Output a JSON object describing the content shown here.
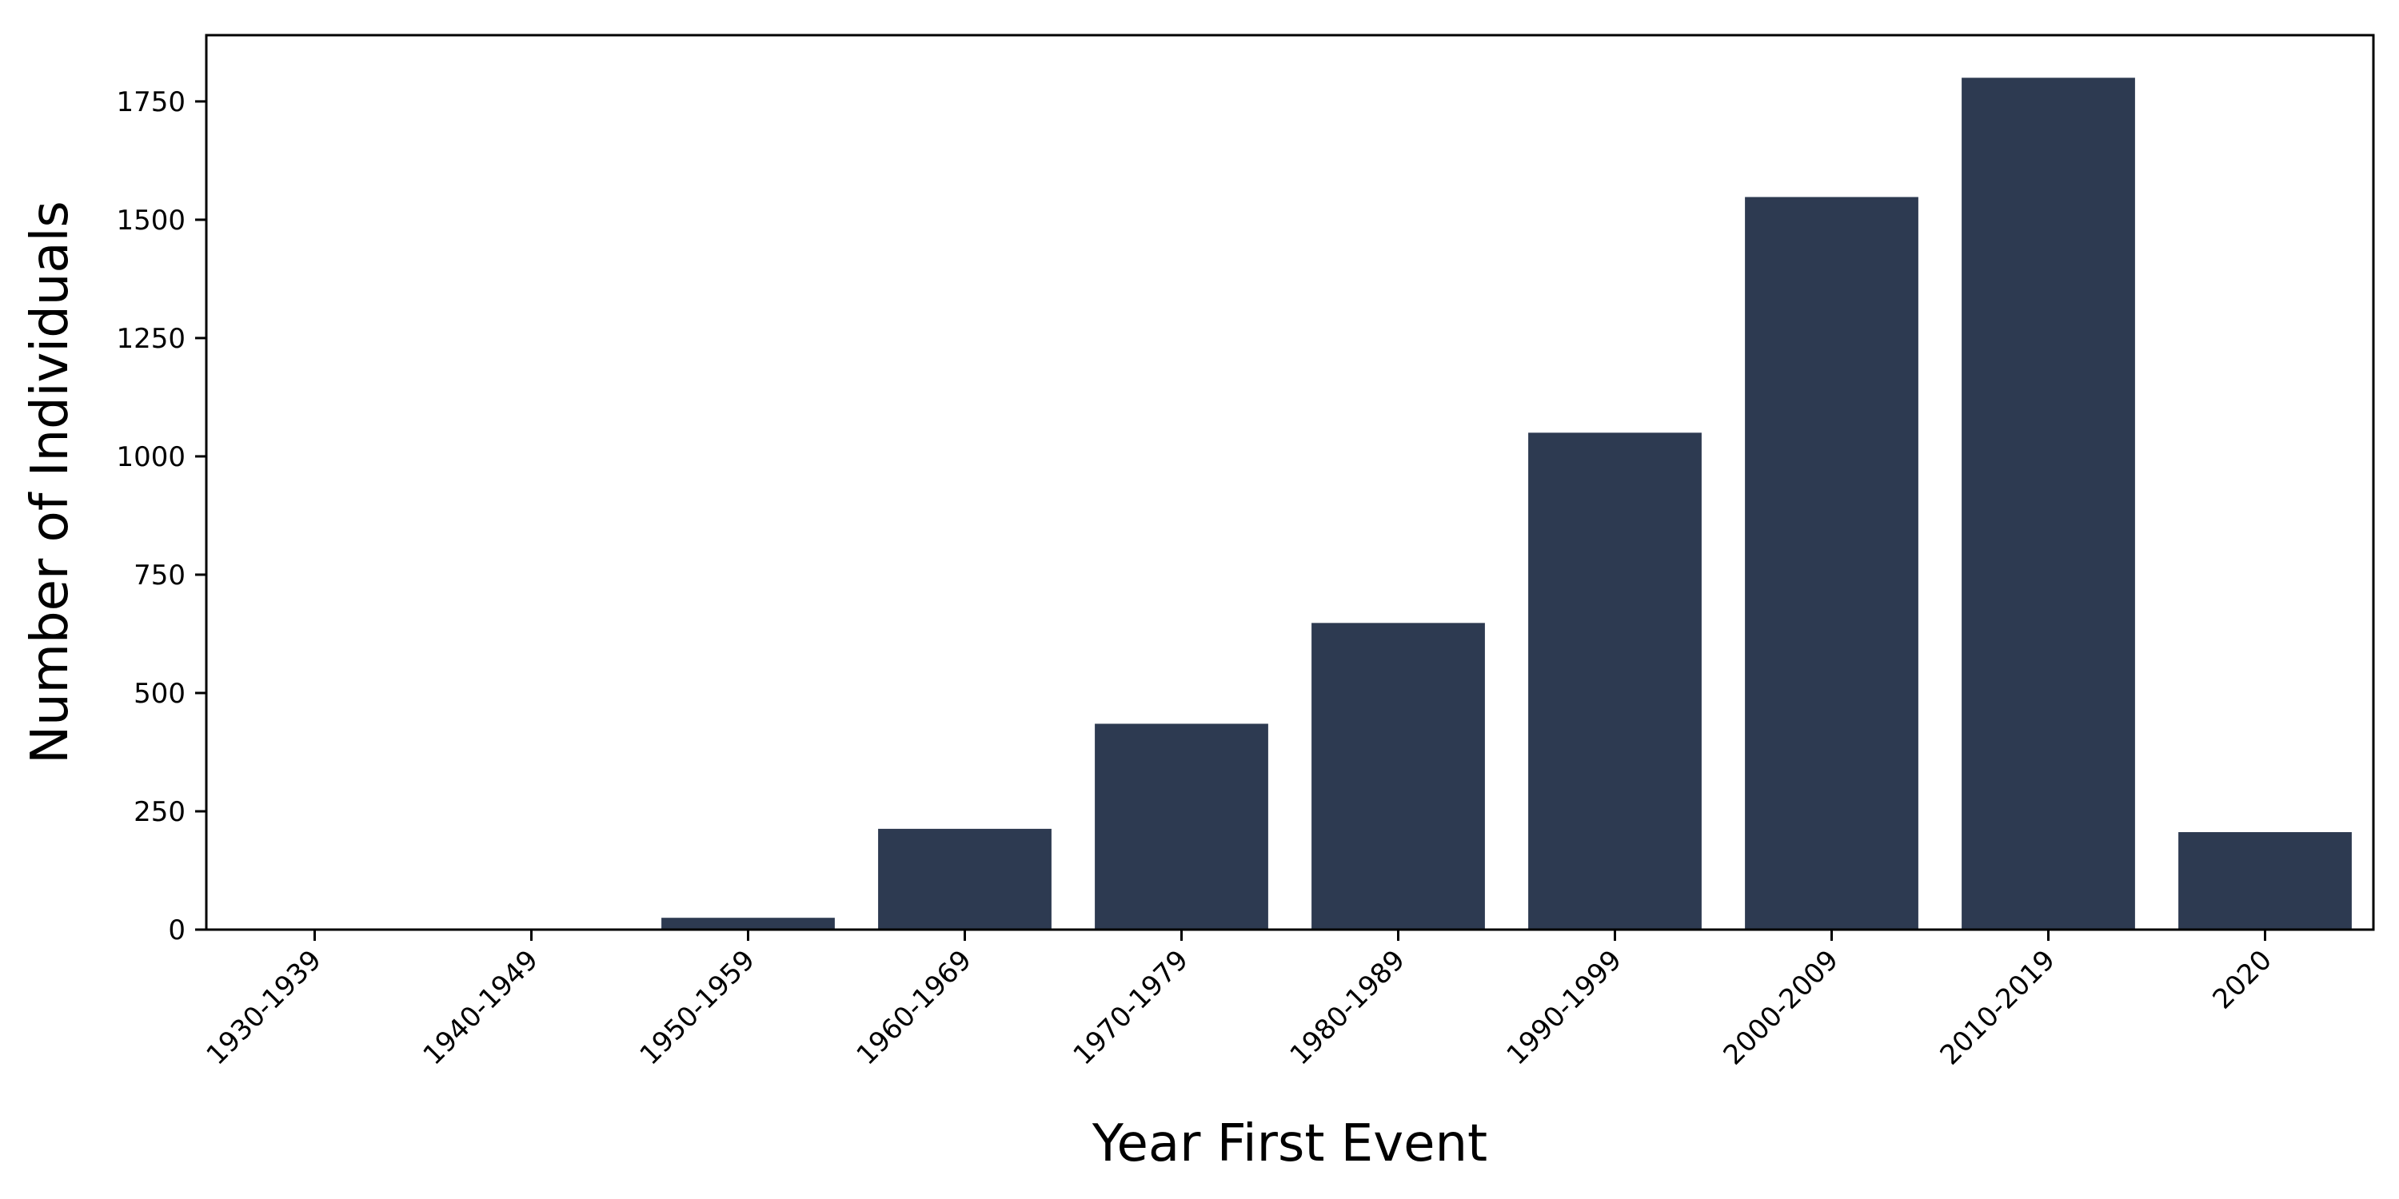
{
  "chart_data": {
    "type": "bar",
    "categories": [
      "1930-1939",
      "1940-1949",
      "1950-1959",
      "1960-1969",
      "1970-1979",
      "1980-1989",
      "1990-1999",
      "2000-2009",
      "2010-2019",
      "2020"
    ],
    "values": [
      1,
      1,
      25,
      213,
      435,
      648,
      1050,
      1548,
      1800,
      206
    ],
    "title": "",
    "xlabel": "Year First Event",
    "ylabel": "Number of Individuals",
    "ylim": [
      0,
      1890
    ],
    "yticks": [
      0,
      250,
      500,
      750,
      1000,
      1250,
      1500,
      1750
    ],
    "bar_color": "#2d3a51",
    "grid": false,
    "legend": "none"
  }
}
